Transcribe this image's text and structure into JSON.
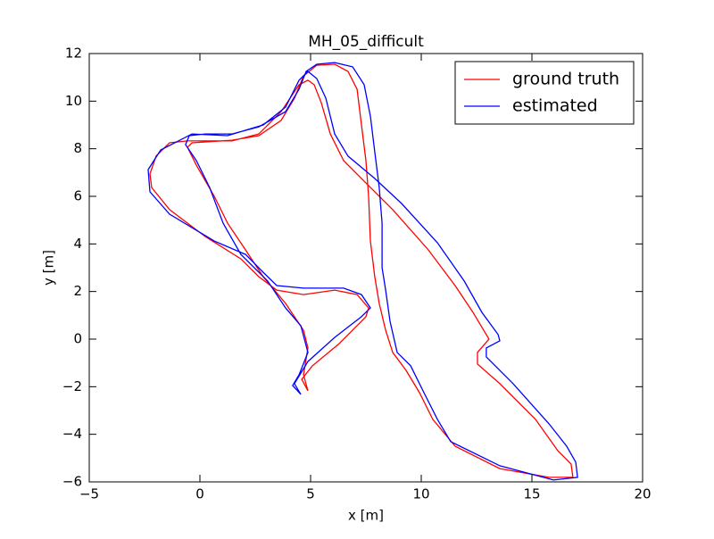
{
  "chart_data": {
    "type": "line",
    "title": "MH_05_difficult",
    "xlabel": "x [m]",
    "ylabel": "y [m]",
    "xlim": [
      -5,
      20
    ],
    "ylim": [
      -6,
      12
    ],
    "xticks": [
      {
        "value": -5,
        "label": "−5"
      },
      0,
      5,
      10,
      15,
      20
    ],
    "yticks": [
      {
        "value": -6,
        "label": "−6"
      },
      {
        "value": -4,
        "label": "−4"
      },
      {
        "value": -2,
        "label": "−2"
      },
      0,
      2,
      4,
      6,
      8,
      10,
      12
    ],
    "legend": "upper right",
    "grid": false,
    "series": [
      {
        "name": "ground truth",
        "color": "#ff0000",
        "x": [
          4.88,
          4.6,
          5.08,
          6.29,
          7.5,
          7.62,
          7.1,
          6.09,
          4.68,
          3.47,
          2.66,
          1.85,
          0.24,
          -1.37,
          -2.18,
          -2.26,
          -1.98,
          -1.37,
          -0.56,
          1.45,
          2.66,
          3.67,
          4.48,
          4.88,
          5.16,
          5.48,
          5.89,
          6.49,
          7.5,
          8.71,
          10.32,
          11.53,
          12.34,
          13.06,
          12.54,
          12.54,
          13.55,
          15.16,
          16.17,
          16.77,
          16.85,
          15.77,
          13.55,
          11.53,
          10.52,
          9.92,
          9.31,
          8.71,
          8.39,
          8.1,
          7.9,
          7.7,
          7.62,
          7.5,
          7.3,
          7.1,
          6.69,
          6.09,
          5.28,
          4.68,
          4.27,
          3.67,
          2.66,
          1.45,
          -0.36,
          -0.56,
          -0.16,
          0.65,
          1.25,
          2.06,
          2.86,
          3.87,
          4.68,
          4.88,
          4.68,
          4.88
        ],
        "values": [
          -2.17,
          -1.69,
          -1.12,
          -0.19,
          0.94,
          1.31,
          1.87,
          2.06,
          1.87,
          2.06,
          2.62,
          3.37,
          4.31,
          5.44,
          6.37,
          6.94,
          7.69,
          8.25,
          8.33,
          8.33,
          8.62,
          9.56,
          10.69,
          10.88,
          10.69,
          9.94,
          8.62,
          7.5,
          6.56,
          5.44,
          3.75,
          2.25,
          1.12,
          0.0,
          -0.56,
          -1.05,
          -1.87,
          -3.37,
          -4.69,
          -5.25,
          -5.81,
          -5.81,
          -5.44,
          -4.5,
          -3.37,
          -2.25,
          -1.31,
          -0.56,
          0.37,
          1.5,
          2.62,
          4.12,
          6.0,
          7.5,
          9.0,
          10.5,
          11.25,
          11.55,
          11.51,
          11.06,
          10.12,
          9.19,
          8.55,
          8.36,
          8.25,
          8.06,
          7.31,
          6.0,
          4.87,
          3.75,
          2.62,
          1.5,
          0.37,
          -0.37,
          -1.5,
          -2.17
        ]
      },
      {
        "name": "estimated",
        "color": "#0000ff",
        "x": [
          4.56,
          4.27,
          4.88,
          6.09,
          7.3,
          7.7,
          7.3,
          6.49,
          4.68,
          3.47,
          2.86,
          2.06,
          0.65,
          -1.37,
          -2.26,
          -2.34,
          -1.77,
          -0.97,
          -0.36,
          1.25,
          2.86,
          3.87,
          4.48,
          4.88,
          5.28,
          5.69,
          6.09,
          6.69,
          7.9,
          9.11,
          10.73,
          11.94,
          12.74,
          13.47,
          13.55,
          12.94,
          12.94,
          14.15,
          15.77,
          16.57,
          16.98,
          17.06,
          15.97,
          13.55,
          11.33,
          10.73,
          10.12,
          9.52,
          8.91,
          8.59,
          8.39,
          8.23,
          8.23,
          8.1,
          7.9,
          7.7,
          7.42,
          6.9,
          6.09,
          5.28,
          4.8,
          4.48,
          3.87,
          2.66,
          1.45,
          0.24,
          -0.48,
          -0.65,
          -0.16,
          0.44,
          1.05,
          1.85,
          3.06,
          3.87,
          4.56,
          4.88,
          4.48,
          4.19,
          4.56
        ],
        "values": [
          -2.32,
          -1.87,
          -0.94,
          0.07,
          0.94,
          1.31,
          1.87,
          2.14,
          2.14,
          2.25,
          2.81,
          3.56,
          4.12,
          5.25,
          6.19,
          7.12,
          7.95,
          8.33,
          8.62,
          8.55,
          9.0,
          9.75,
          10.88,
          11.25,
          10.95,
          10.12,
          8.62,
          7.69,
          6.75,
          5.7,
          4.05,
          2.44,
          1.12,
          0.19,
          -0.07,
          -0.37,
          -0.75,
          -1.87,
          -3.56,
          -4.5,
          -5.17,
          -5.81,
          -5.92,
          -5.32,
          -4.31,
          -3.37,
          -2.25,
          -1.12,
          -0.56,
          0.75,
          2.06,
          3.0,
          4.87,
          6.37,
          7.87,
          9.37,
          10.69,
          11.44,
          11.62,
          11.55,
          11.25,
          10.5,
          9.56,
          8.92,
          8.62,
          8.62,
          8.55,
          8.17,
          7.5,
          6.37,
          4.87,
          3.56,
          2.44,
          1.31,
          0.56,
          -0.56,
          -1.5,
          -1.95,
          -2.32
        ]
      }
    ]
  }
}
